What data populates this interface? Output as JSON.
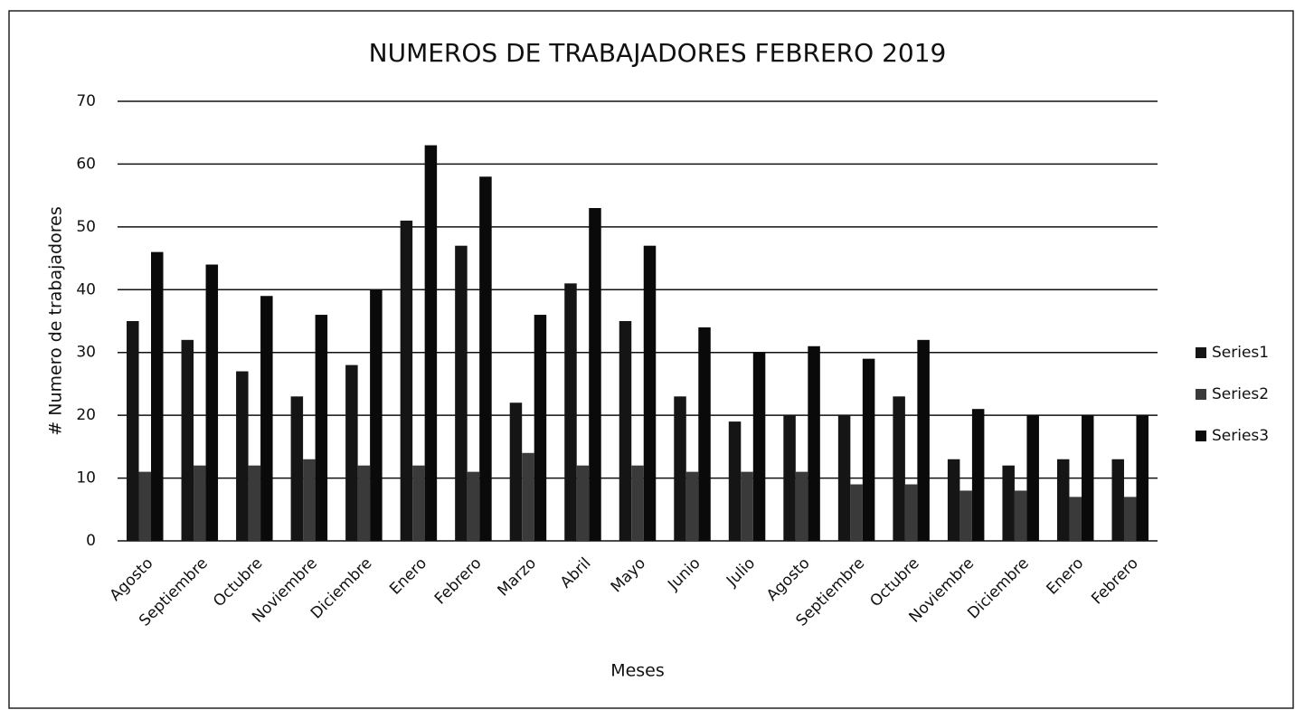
{
  "chart_data": {
    "type": "bar",
    "title": "NUMEROS DE TRABAJADORES FEBRERO 2019",
    "x_label": "Meses",
    "y_label": "# Numero de trabajadores",
    "categories": [
      "Agosto",
      "Septiembre",
      "Octubre",
      "Noviembre",
      "Diciembre",
      "Enero",
      "Febrero",
      "Marzo",
      "Abril",
      "Mayo",
      "Junio",
      "Julio",
      "Agosto",
      "Septiembre",
      "Octubre",
      "Noviembre",
      "Diciembre",
      "Enero",
      "Febrero"
    ],
    "series": [
      {
        "name": "Series1",
        "color": "#151515",
        "values": [
          35,
          32,
          27,
          23,
          28,
          51,
          47,
          22,
          41,
          35,
          23,
          19,
          20,
          20,
          23,
          13,
          12,
          13,
          13
        ]
      },
      {
        "name": "Series2",
        "color": "#3a3a3a",
        "values": [
          11,
          12,
          12,
          13,
          12,
          12,
          11,
          14,
          12,
          12,
          11,
          11,
          11,
          9,
          9,
          8,
          8,
          7,
          7
        ]
      },
      {
        "name": "Series3",
        "color": "#0a0a0a",
        "values": [
          46,
          44,
          39,
          36,
          40,
          63,
          58,
          36,
          53,
          47,
          34,
          30,
          31,
          29,
          32,
          21,
          20,
          20,
          20
        ]
      }
    ],
    "ylim": [
      0,
      70
    ],
    "yticks": [
      0,
      10,
      20,
      30,
      40,
      50,
      60,
      70
    ],
    "grid": true,
    "legend": "right"
  }
}
